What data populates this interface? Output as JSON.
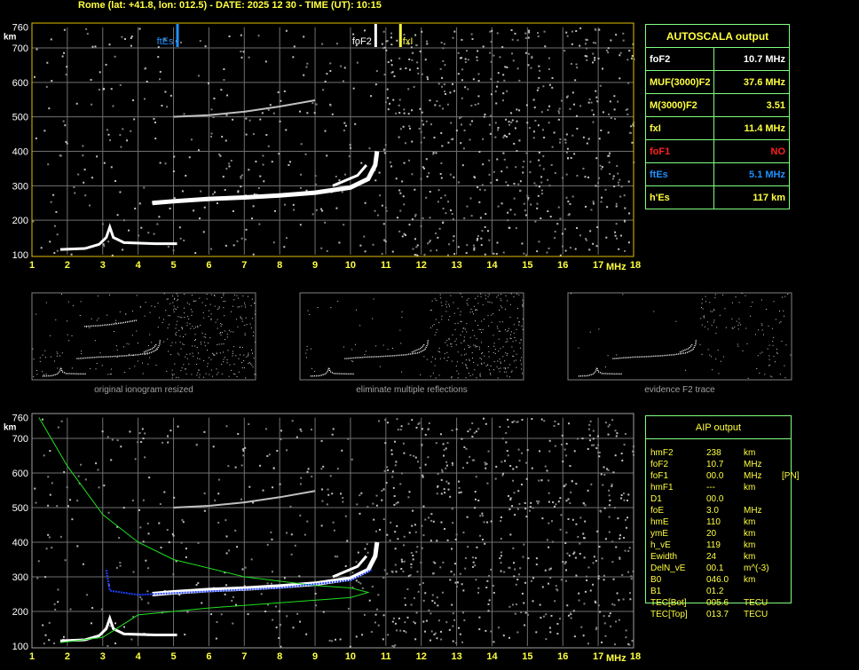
{
  "header": {
    "title": "Rome (lat: +41.8, lon: 012.5) - DATE: 2025 12 30 - TIME (UT): 10:15"
  },
  "autoscala": {
    "title": "AUTOSCALA output",
    "rows": [
      {
        "label": "foF2",
        "value": "10.7 MHz",
        "color": "#ffffff"
      },
      {
        "label": "MUF(3000)F2",
        "value": "37.6 MHz",
        "color": "#ffff40"
      },
      {
        "label": "M(3000)F2",
        "value": "3.51",
        "color": "#ffff40"
      },
      {
        "label": "fxI",
        "value": "11.4 MHz",
        "color": "#ffff40"
      },
      {
        "label": "foF1",
        "value": "NO",
        "color": "#ff2020"
      },
      {
        "label": "ftEs",
        "value": "5.1 MHz",
        "color": "#1e90ff"
      },
      {
        "label": "h'Es",
        "value": "117     km",
        "color": "#ffff40"
      }
    ]
  },
  "aip": {
    "title": "AIP output",
    "rows": [
      [
        "hmF2",
        "238",
        "km",
        ""
      ],
      [
        "foF2",
        "10.7",
        "MHz",
        ""
      ],
      [
        "foF1",
        "00.0",
        "MHz",
        "[PN]"
      ],
      [
        "hmF1",
        "---",
        "km",
        ""
      ],
      [
        "D1",
        "00.0",
        "",
        ""
      ],
      [
        "foE",
        "3.0",
        "MHz",
        ""
      ],
      [
        "hmE",
        "110",
        "km",
        ""
      ],
      [
        "ymE",
        "20",
        "km",
        ""
      ],
      [
        "h_vE",
        "119",
        "km",
        ""
      ],
      [
        "Ewidth",
        "24",
        "km",
        ""
      ],
      [
        "DelN_vE",
        "00.1",
        "m^(-3)",
        ""
      ],
      [
        "B0",
        "046.0",
        "km",
        ""
      ],
      [
        "B1",
        "01.2",
        "",
        ""
      ],
      [
        "TEC[Bot]",
        "005.6",
        "TECU",
        ""
      ],
      [
        "TEC[Top]",
        "013.7",
        "TECU",
        ""
      ]
    ]
  },
  "thumbnails": [
    "original ionogram resized",
    "eliminate multiple reflections",
    "evidence F2 trace"
  ],
  "chart_data": {
    "type": "scatter",
    "xlabel": "MHz",
    "ylabel": "km",
    "xlim": [
      1,
      18
    ],
    "ylim": [
      100,
      760
    ],
    "xticks": [
      "1",
      "2",
      "3",
      "4",
      "5",
      "6",
      "7",
      "8",
      "9",
      "10",
      "11",
      "12",
      "13",
      "14",
      "15",
      "16",
      "17",
      "18"
    ],
    "yticks": [
      "100",
      "200",
      "300",
      "400",
      "500",
      "600",
      "700",
      "760"
    ],
    "grid": true,
    "markers": [
      {
        "label": "ftEs",
        "freq": 5.1,
        "color": "#1e90ff"
      },
      {
        "label": "foF2",
        "freq": 10.7,
        "color": "#ffffff"
      },
      {
        "label": "fxI",
        "freq": 11.4,
        "color": "#ffff40"
      }
    ],
    "traces": {
      "E_Es": [
        [
          1.8,
          115
        ],
        [
          2.5,
          118
        ],
        [
          2.9,
          130
        ],
        [
          3.1,
          150
        ],
        [
          3.2,
          180
        ],
        [
          3.3,
          150
        ],
        [
          3.6,
          135
        ],
        [
          4.5,
          132
        ],
        [
          5.1,
          132
        ]
      ],
      "F2_ordinary": [
        [
          4.4,
          250
        ],
        [
          5,
          255
        ],
        [
          6,
          262
        ],
        [
          7,
          266
        ],
        [
          8,
          272
        ],
        [
          9,
          280
        ],
        [
          10,
          295
        ],
        [
          10.5,
          320
        ],
        [
          10.7,
          360
        ],
        [
          10.75,
          400
        ]
      ],
      "F2_extraordinary": [
        [
          9.5,
          300
        ],
        [
          10.2,
          330
        ],
        [
          10.45,
          360
        ]
      ],
      "multiple_reflection": [
        [
          5,
          500
        ],
        [
          6,
          505
        ],
        [
          7,
          515
        ],
        [
          8,
          530
        ],
        [
          9,
          548
        ]
      ]
    },
    "profile": {
      "green": [
        [
          1.8,
          110
        ],
        [
          3,
          125
        ],
        [
          4,
          190
        ],
        [
          6,
          210
        ],
        [
          8,
          225
        ],
        [
          10,
          240
        ],
        [
          10.5,
          255
        ],
        [
          10,
          268
        ],
        [
          9,
          275
        ],
        [
          7,
          300
        ],
        [
          5,
          350
        ],
        [
          4,
          400
        ],
        [
          3,
          480
        ],
        [
          2,
          620
        ],
        [
          1.2,
          760
        ]
      ],
      "blue": [
        [
          3.1,
          320
        ],
        [
          3.2,
          260
        ],
        [
          4,
          248
        ],
        [
          6,
          258
        ],
        [
          8,
          268
        ],
        [
          10,
          290
        ],
        [
          10.6,
          320
        ]
      ]
    }
  }
}
